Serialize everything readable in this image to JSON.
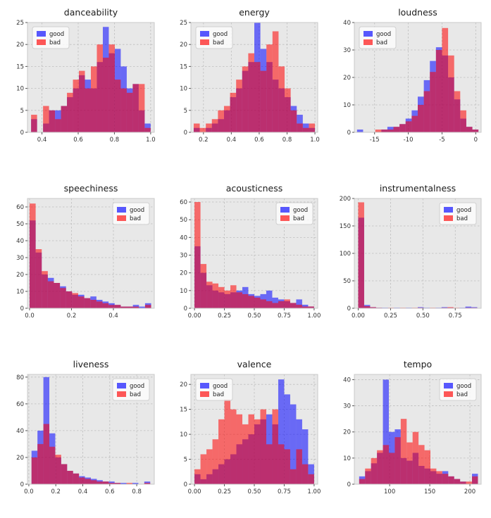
{
  "figure": {
    "background": "#ffffff",
    "plot_background": "#e8e8e8",
    "grid_color": "#bdbdbd"
  },
  "palette": {
    "good": "#0000ff",
    "bad": "#ff0000",
    "bar_opacity": 0.55
  },
  "legend": {
    "entries": [
      "good",
      "bad"
    ]
  },
  "chart_data": [
    {
      "type": "histogram",
      "title": "danceability",
      "legend_loc": "topleft",
      "x_start": 0.34,
      "bin_width": 0.033,
      "xlim": [
        0.32,
        1.02
      ],
      "ylim": [
        0,
        25
      ],
      "xticks": {
        "values": [
          0.4,
          0.6,
          0.8,
          1.0
        ],
        "labels": [
          "0.4",
          "0.6",
          "0.8",
          "1.0"
        ]
      },
      "yticks": {
        "values": [
          0,
          5,
          10,
          15,
          20,
          25
        ],
        "labels": [
          "0",
          "5",
          "10",
          "15",
          "20",
          "25"
        ]
      },
      "series": [
        {
          "name": "good",
          "counts": [
            3,
            0,
            2,
            5,
            5,
            6,
            8,
            10,
            13,
            12,
            10,
            16,
            24,
            18,
            19,
            15,
            10,
            11,
            5,
            2
          ]
        },
        {
          "name": "bad",
          "counts": [
            4,
            0,
            6,
            5,
            3,
            6,
            9,
            12,
            14,
            10,
            15,
            20,
            17,
            20,
            12,
            10,
            9,
            11,
            11,
            1
          ]
        }
      ]
    },
    {
      "type": "histogram",
      "title": "energy",
      "legend_loc": "topleft",
      "x_start": 0.13,
      "bin_width": 0.0435,
      "xlim": [
        0.11,
        1.02
      ],
      "ylim": [
        0,
        25
      ],
      "xticks": {
        "values": [
          0.2,
          0.4,
          0.6,
          0.8,
          1.0
        ],
        "labels": [
          "0.2",
          "0.4",
          "0.6",
          "0.8",
          "1.0"
        ]
      },
      "yticks": {
        "values": [
          0,
          5,
          10,
          15,
          20,
          25
        ],
        "labels": [
          "0",
          "5",
          "10",
          "15",
          "20",
          "25"
        ]
      },
      "series": [
        {
          "name": "good",
          "counts": [
            1,
            0,
            1,
            2,
            3,
            5,
            8,
            10,
            14,
            16,
            25,
            19,
            16,
            12,
            10,
            8,
            6,
            4,
            2,
            1
          ]
        },
        {
          "name": "bad",
          "counts": [
            2,
            1,
            2,
            3,
            5,
            6,
            9,
            12,
            15,
            18,
            16,
            14,
            20,
            23,
            15,
            10,
            5,
            2,
            1,
            2
          ]
        }
      ]
    },
    {
      "type": "histogram",
      "title": "loudness",
      "legend_loc": "topleft",
      "x_start": -17.6,
      "bin_width": 0.9,
      "xlim": [
        -18,
        0.8
      ],
      "ylim": [
        0,
        40
      ],
      "xticks": {
        "values": [
          -15,
          -10,
          -5,
          0
        ],
        "labels": [
          "-15",
          "-10",
          "-5",
          "0"
        ]
      },
      "yticks": {
        "values": [
          0,
          10,
          20,
          30,
          40
        ],
        "labels": [
          "0",
          "10",
          "20",
          "30",
          "40"
        ]
      },
      "series": [
        {
          "name": "good",
          "counts": [
            1,
            0,
            0,
            0,
            1,
            2,
            2,
            3,
            5,
            8,
            13,
            19,
            26,
            31,
            28,
            20,
            12,
            5,
            2,
            1
          ]
        },
        {
          "name": "bad",
          "counts": [
            0,
            0,
            0,
            1,
            1,
            1,
            2,
            3,
            4,
            6,
            10,
            15,
            22,
            30,
            38,
            28,
            15,
            8,
            2,
            1
          ]
        }
      ]
    },
    {
      "type": "histogram",
      "title": "speechiness",
      "legend_loc": "topright",
      "x_start": 0.0,
      "bin_width": 0.029,
      "xlim": [
        -0.01,
        0.595
      ],
      "ylim": [
        0,
        65
      ],
      "xticks": {
        "values": [
          0.0,
          0.2,
          0.4
        ],
        "labels": [
          "0.0",
          "0.2",
          "0.4"
        ]
      },
      "yticks": {
        "values": [
          0,
          10,
          20,
          30,
          40,
          50,
          60
        ],
        "labels": [
          "0",
          "10",
          "20",
          "30",
          "40",
          "50",
          "60"
        ]
      },
      "series": [
        {
          "name": "good",
          "counts": [
            52,
            33,
            20,
            18,
            15,
            13,
            10,
            8,
            8,
            6,
            7,
            5,
            4,
            3,
            2,
            1,
            1,
            2,
            1,
            3
          ]
        },
        {
          "name": "bad",
          "counts": [
            62,
            35,
            22,
            16,
            15,
            12,
            10,
            9,
            7,
            6,
            5,
            4,
            3,
            2,
            2,
            1,
            1,
            1,
            0,
            2
          ]
        }
      ]
    },
    {
      "type": "histogram",
      "title": "acousticness",
      "legend_loc": "topright",
      "x_start": 0.0,
      "bin_width": 0.05,
      "xlim": [
        -0.03,
        1.03
      ],
      "ylim": [
        0,
        62
      ],
      "xticks": {
        "values": [
          0.0,
          0.25,
          0.5,
          0.75,
          1.0
        ],
        "labels": [
          "0.00",
          "0.25",
          "0.50",
          "0.75",
          "1.00"
        ]
      },
      "yticks": {
        "values": [
          0,
          10,
          20,
          30,
          40,
          50,
          60
        ],
        "labels": [
          "0",
          "10",
          "20",
          "30",
          "40",
          "50",
          "60"
        ]
      },
      "series": [
        {
          "name": "good",
          "counts": [
            35,
            20,
            13,
            10,
            9,
            8,
            9,
            10,
            12,
            8,
            7,
            8,
            10,
            6,
            5,
            4,
            3,
            5,
            2,
            1
          ]
        },
        {
          "name": "bad",
          "counts": [
            60,
            25,
            15,
            14,
            12,
            10,
            13,
            9,
            8,
            7,
            6,
            5,
            4,
            3,
            4,
            5,
            3,
            2,
            1,
            1
          ]
        }
      ]
    },
    {
      "type": "histogram",
      "title": "instrumentalness",
      "legend_loc": "topright",
      "x_start": 0.0,
      "bin_width": 0.046,
      "xlim": [
        -0.03,
        0.95
      ],
      "ylim": [
        0,
        200
      ],
      "xticks": {
        "values": [
          0.0,
          0.25,
          0.5,
          0.75
        ],
        "labels": [
          "0.00",
          "0.25",
          "0.50",
          "0.75"
        ]
      },
      "yticks": {
        "values": [
          0,
          50,
          100,
          150,
          200
        ],
        "labels": [
          "0",
          "50",
          "100",
          "150",
          "200"
        ]
      },
      "series": [
        {
          "name": "good",
          "counts": [
            165,
            6,
            2,
            1,
            1,
            0,
            1,
            0,
            1,
            0,
            2,
            1,
            0,
            1,
            2,
            1,
            0,
            1,
            3,
            2
          ]
        },
        {
          "name": "bad",
          "counts": [
            193,
            4,
            2,
            1,
            0,
            1,
            0,
            1,
            0,
            1,
            1,
            0,
            1,
            0,
            1,
            2,
            1,
            0,
            1,
            1
          ]
        }
      ]
    },
    {
      "type": "histogram",
      "title": "liveness",
      "legend_loc": "topright",
      "x_start": 0.02,
      "bin_width": 0.044,
      "xlim": [
        -0.01,
        0.93
      ],
      "ylim": [
        0,
        82
      ],
      "xticks": {
        "values": [
          0.0,
          0.2,
          0.4,
          0.6,
          0.8
        ],
        "labels": [
          "0.0",
          "0.2",
          "0.4",
          "0.6",
          "0.8"
        ]
      },
      "yticks": {
        "values": [
          0,
          20,
          40,
          60,
          80
        ],
        "labels": [
          "0",
          "20",
          "40",
          "60",
          "80"
        ]
      },
      "series": [
        {
          "name": "good",
          "counts": [
            25,
            40,
            80,
            38,
            20,
            15,
            10,
            8,
            6,
            5,
            4,
            3,
            2,
            2,
            1,
            1,
            0,
            1,
            0,
            2
          ]
        },
        {
          "name": "bad",
          "counts": [
            20,
            30,
            45,
            28,
            22,
            15,
            10,
            8,
            5,
            4,
            3,
            2,
            2,
            1,
            1,
            0,
            1,
            0,
            0,
            1
          ]
        }
      ]
    },
    {
      "type": "histogram",
      "title": "valence",
      "legend_loc": "topleft",
      "x_start": 0.0,
      "bin_width": 0.05,
      "xlim": [
        -0.03,
        1.03
      ],
      "ylim": [
        0,
        22
      ],
      "xticks": {
        "values": [
          0.0,
          0.25,
          0.5,
          0.75,
          1.0
        ],
        "labels": [
          "0.00",
          "0.25",
          "0.50",
          "0.75",
          "1.00"
        ]
      },
      "yticks": {
        "values": [
          0,
          5,
          10,
          15,
          20
        ],
        "labels": [
          "0",
          "5",
          "10",
          "15",
          "20"
        ]
      },
      "series": [
        {
          "name": "good",
          "counts": [
            2,
            1,
            2,
            3,
            4,
            5,
            6,
            8,
            9,
            10,
            12,
            13,
            14,
            12,
            21,
            18,
            16,
            13,
            11,
            4
          ]
        },
        {
          "name": "bad",
          "counts": [
            3,
            6,
            7,
            9,
            13,
            17,
            15,
            14,
            12,
            14,
            13,
            15,
            8,
            15,
            8,
            7,
            3,
            7,
            4,
            2
          ]
        }
      ]
    },
    {
      "type": "histogram",
      "title": "tempo",
      "legend_loc": "topright",
      "x_start": 62,
      "bin_width": 7.4,
      "xlim": [
        56,
        214
      ],
      "ylim": [
        0,
        42
      ],
      "xticks": {
        "values": [
          100,
          150,
          200
        ],
        "labels": [
          "100",
          "150",
          "200"
        ]
      },
      "yticks": {
        "values": [
          0,
          10,
          20,
          30,
          40
        ],
        "labels": [
          "0",
          "10",
          "20",
          "30",
          "40"
        ]
      },
      "series": [
        {
          "name": "good",
          "counts": [
            3,
            5,
            8,
            12,
            40,
            20,
            21,
            10,
            9,
            12,
            7,
            6,
            5,
            4,
            5,
            3,
            2,
            1,
            0,
            4
          ]
        },
        {
          "name": "bad",
          "counts": [
            2,
            6,
            10,
            13,
            15,
            12,
            18,
            25,
            16,
            20,
            15,
            13,
            6,
            5,
            4,
            3,
            2,
            1,
            1,
            3
          ]
        }
      ]
    }
  ]
}
